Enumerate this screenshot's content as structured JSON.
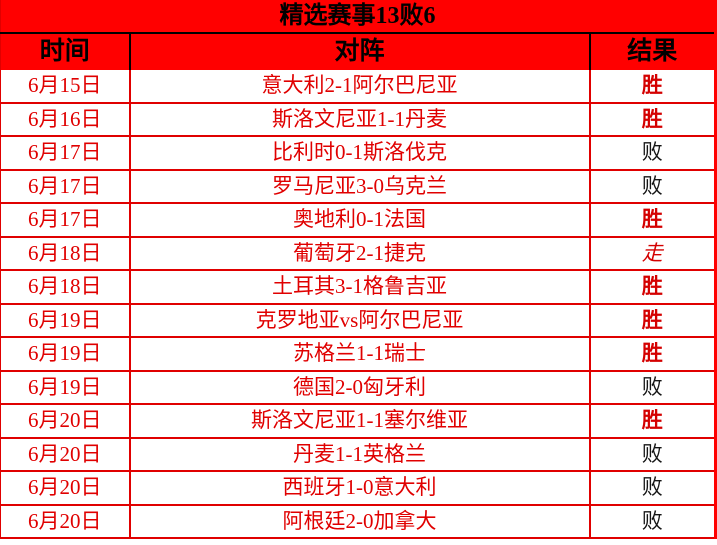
{
  "title": "精选赛事13败6",
  "table": {
    "columns": [
      "时间",
      "对阵",
      "结果"
    ],
    "rows": [
      {
        "date": "6月15日",
        "fixture": "意大利2-1阿尔巴尼亚",
        "result": "胜",
        "result_type": "win"
      },
      {
        "date": "6月16日",
        "fixture": "斯洛文尼亚1-1丹麦",
        "result": "胜",
        "result_type": "win"
      },
      {
        "date": "6月17日",
        "fixture": "比利时0-1斯洛伐克",
        "result": "败",
        "result_type": "loss"
      },
      {
        "date": "6月17日",
        "fixture": "罗马尼亚3-0乌克兰",
        "result": "败",
        "result_type": "loss"
      },
      {
        "date": "6月17日",
        "fixture": "奥地利0-1法国",
        "result": "胜",
        "result_type": "win"
      },
      {
        "date": "6月18日",
        "fixture": "葡萄牙2-1捷克",
        "result": "走",
        "result_type": "push"
      },
      {
        "date": "6月18日",
        "fixture": "土耳其3-1格鲁吉亚",
        "result": "胜",
        "result_type": "win"
      },
      {
        "date": "6月19日",
        "fixture": "克罗地亚vs阿尔巴尼亚",
        "result": "胜",
        "result_type": "win"
      },
      {
        "date": "6月19日",
        "fixture": "苏格兰1-1瑞士",
        "result": "胜",
        "result_type": "win"
      },
      {
        "date": "6月19日",
        "fixture": "德国2-0匈牙利",
        "result": "败",
        "result_type": "loss"
      },
      {
        "date": "6月20日",
        "fixture": "斯洛文尼亚1-1塞尔维亚",
        "result": "胜",
        "result_type": "win"
      },
      {
        "date": "6月20日",
        "fixture": "丹麦1-1英格兰",
        "result": "败",
        "result_type": "loss"
      },
      {
        "date": "6月20日",
        "fixture": "西班牙1-0意大利",
        "result": "败",
        "result_type": "loss"
      },
      {
        "date": "6月20日",
        "fixture": "阿根廷2-0加拿大",
        "result": "败",
        "result_type": "loss"
      }
    ]
  },
  "colors": {
    "header_bg": "#ff0000",
    "header_text": "#000000",
    "data_text": "#e00000",
    "win_text": "#d40000",
    "loss_text": "#151515",
    "border": "#e00000"
  }
}
